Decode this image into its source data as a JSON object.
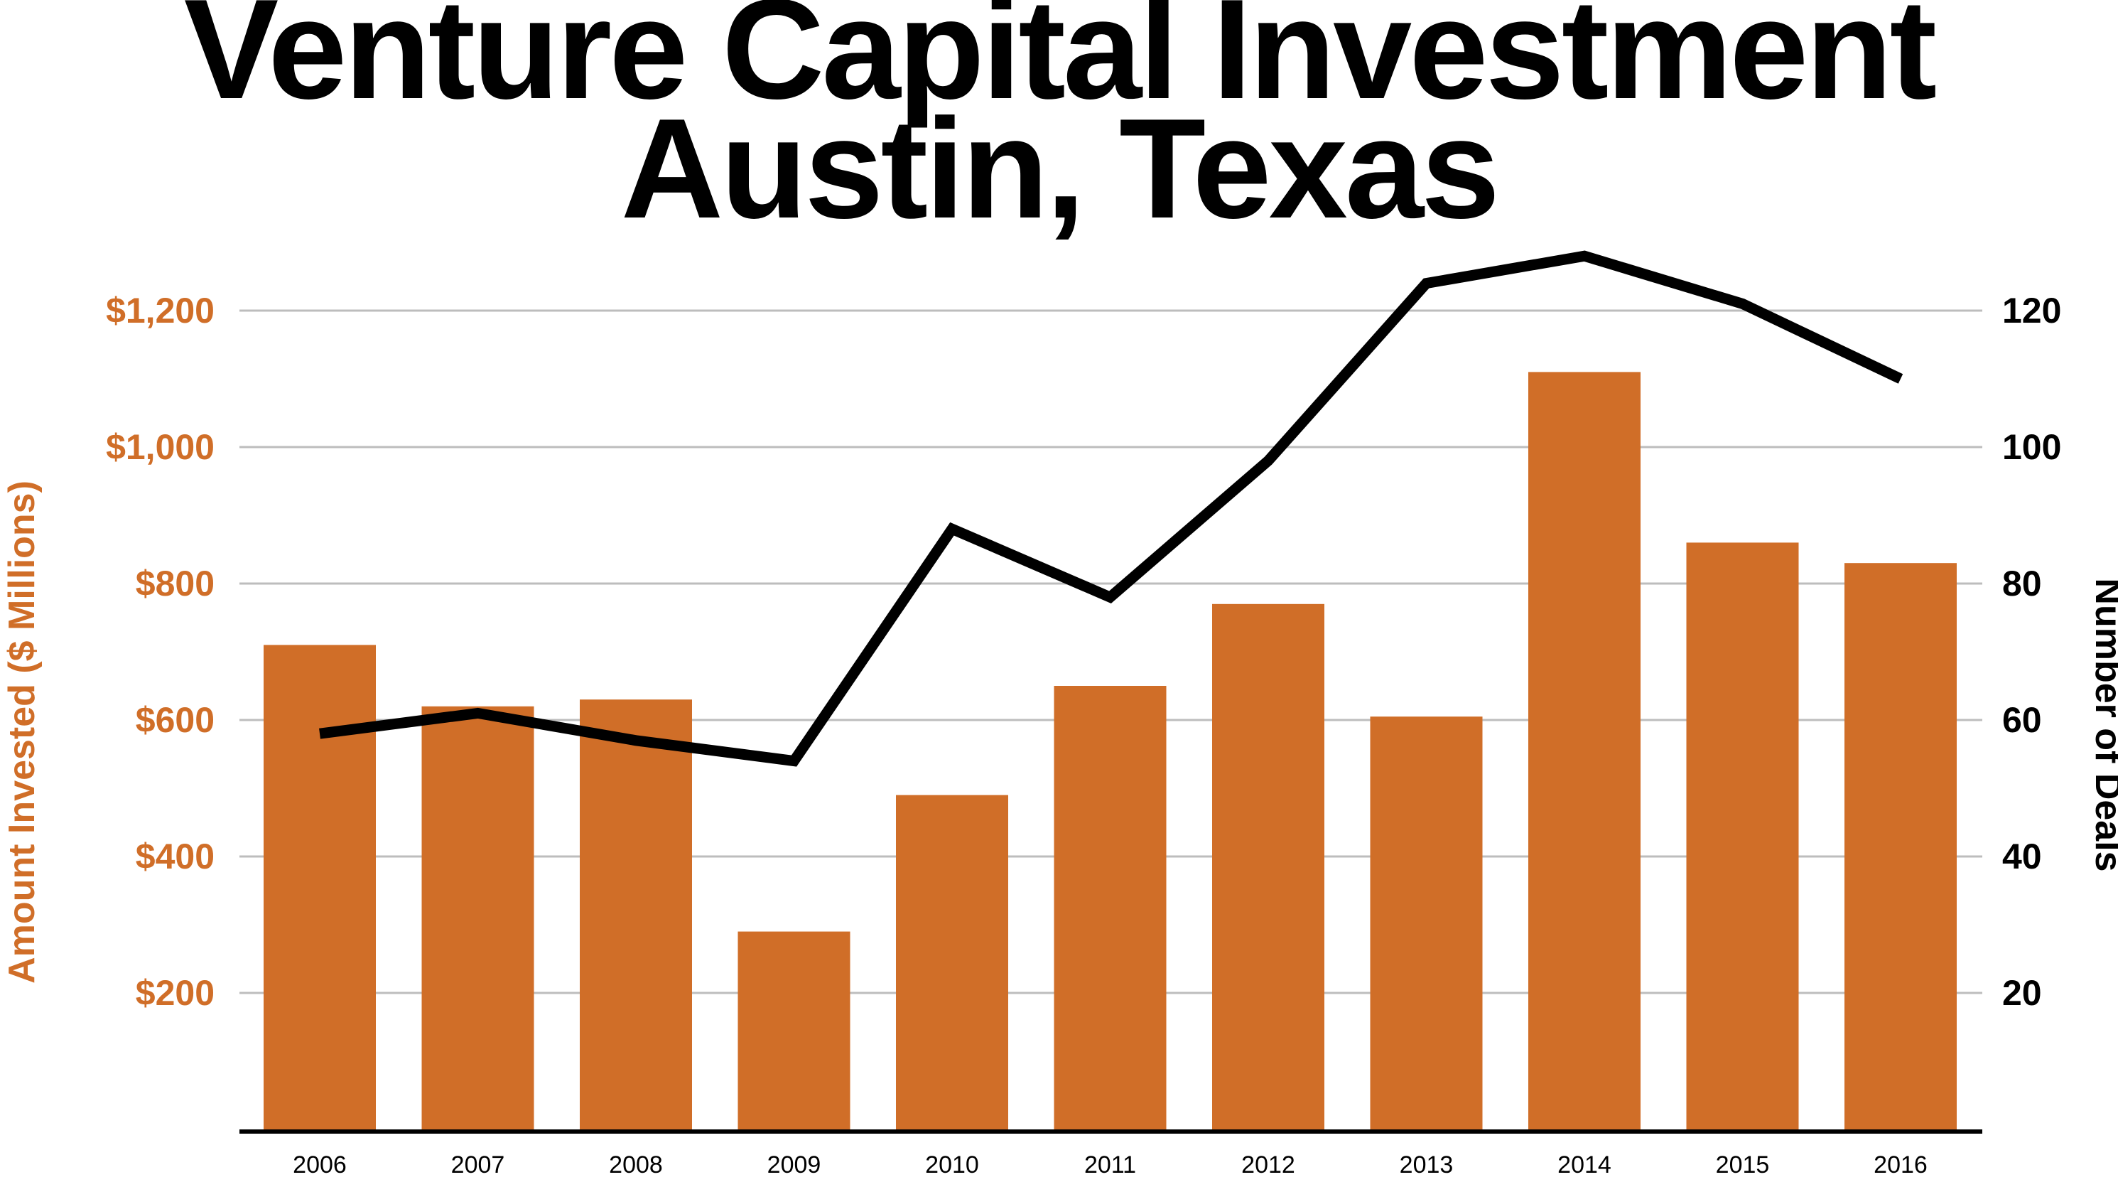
{
  "chart_data": {
    "type": "bar",
    "title": "Venture Capital Investment",
    "subtitle": "Austin, Texas",
    "categories": [
      "2006",
      "2007",
      "2008",
      "2009",
      "2010",
      "2011",
      "2012",
      "2013",
      "2014",
      "2015",
      "2016"
    ],
    "series": [
      {
        "name": "Amount Invested ($ Millions)",
        "render": "bar",
        "axis": "left",
        "color": "#D06E28",
        "values": [
          710,
          620,
          630,
          290,
          490,
          650,
          770,
          605,
          1110,
          860,
          830
        ]
      },
      {
        "name": "Number of Deals",
        "render": "line",
        "axis": "right",
        "color": "#000000",
        "values": [
          58,
          61,
          57,
          54,
          88,
          78,
          98,
          124,
          128,
          121,
          110
        ]
      }
    ],
    "left_axis": {
      "label": "Amount Invested ($ Millions)",
      "ticks": [
        "$200",
        "$400",
        "$600",
        "$800",
        "$1,000",
        "$1,200"
      ],
      "tick_values": [
        200,
        400,
        600,
        800,
        1000,
        1200
      ],
      "range": [
        0,
        1250
      ],
      "color": "#D06E28"
    },
    "right_axis": {
      "label": "Number of Deals",
      "ticks": [
        "20",
        "40",
        "60",
        "80",
        "100",
        "120"
      ],
      "tick_values": [
        20,
        40,
        60,
        80,
        100,
        120
      ],
      "range": [
        0,
        125
      ],
      "color": "#000000"
    },
    "xlabel": "",
    "grid": true,
    "gridline_color": "#BDBDBD",
    "axis_line_color": "#000000",
    "legend": false,
    "legend_position": "none"
  }
}
